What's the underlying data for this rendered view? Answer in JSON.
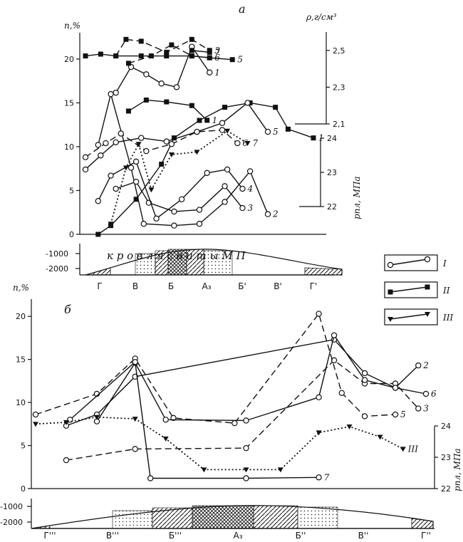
{
  "chart_data": [
    {
      "panel_label": "а",
      "type": "line",
      "y_left_label": "n,%",
      "y_left_ticks": [
        "0",
        "5",
        "10",
        "15",
        "20"
      ],
      "y_left_lim": [
        0,
        23
      ],
      "y_right_density_label": "ρ,г/см³",
      "y_right_density_ticks": [
        "2,1",
        "2,3",
        "2,5"
      ],
      "y_right_density_lim": [
        2.1,
        2.6
      ],
      "y_right_pressure_label": "pпл, МПа",
      "y_right_pressure_ticks": [
        "22",
        "23",
        "24"
      ],
      "y_right_pressure_lim": [
        22,
        24
      ],
      "x_zone_labels": [
        "Г",
        "В",
        "Б",
        "А₃",
        "Б'",
        "В'",
        "Г'"
      ],
      "profile_axis_ticks": [
        "-1000",
        "-2000"
      ],
      "profile_text": "к р о в л я    с в и т ы    М П",
      "series": [
        {
          "name": "1",
          "style": "solid",
          "marker": "square",
          "points": [
            [
              0.5,
              0
            ],
            [
              1.0,
              1
            ],
            [
              2.0,
              4
            ],
            [
              3.0,
              8
            ],
            [
              3.5,
              11
            ],
            [
              4.5,
              13
            ],
            [
              5.5,
              14.5
            ],
            [
              6.5,
              15
            ],
            [
              7.5,
              14.5
            ],
            [
              8.0,
              12
            ],
            [
              9.0,
              11
            ]
          ]
        },
        {
          "name": "2",
          "style": "solid",
          "marker": "circle",
          "points": [
            [
              0.5,
              10.2
            ],
            [
              1.0,
              16
            ],
            [
              1.8,
              7.6
            ],
            [
              2.3,
              1.2
            ],
            [
              3.5,
              1
            ],
            [
              4.5,
              1.2
            ],
            [
              5.5,
              3.7
            ],
            [
              6.5,
              7.2
            ],
            [
              7.2,
              2.3
            ]
          ]
        },
        {
          "name": "3",
          "style": "solid",
          "marker": "circle",
          "points": [
            [
              1.2,
              5.2
            ],
            [
              2.0,
              6
            ],
            [
              2.5,
              3.6
            ],
            [
              3.5,
              2.6
            ],
            [
              4.5,
              2.8
            ],
            [
              5.5,
              5.5
            ],
            [
              6.2,
              3
            ]
          ]
        },
        {
          "name": "4",
          "style": "solid",
          "marker": "circle",
          "points": [
            [
              0.5,
              3.8
            ],
            [
              1.0,
              6.7
            ],
            [
              2.0,
              8.3
            ],
            [
              2.8,
              1.8
            ],
            [
              3.8,
              4
            ],
            [
              4.8,
              7
            ],
            [
              5.6,
              7.4
            ],
            [
              6.2,
              5.2
            ]
          ]
        },
        {
          "name": "5",
          "style": "solid",
          "marker": "circle",
          "points": [
            [
              0,
              7.4
            ],
            [
              0.6,
              9
            ],
            [
              1.2,
              10.5
            ],
            [
              2.2,
              11
            ],
            [
              3.2,
              10.6
            ],
            [
              4.4,
              11.7
            ],
            [
              5.4,
              12.7
            ],
            [
              6.4,
              15
            ],
            [
              7.2,
              11.7
            ]
          ]
        },
        {
          "name": "6",
          "style": "dashed",
          "marker": "circle",
          "points": [
            [
              0,
              8.8
            ],
            [
              0.8,
              10.4
            ],
            [
              1.4,
              11.5
            ],
            [
              2.4,
              9.5
            ],
            [
              3.4,
              10.3
            ],
            [
              4.4,
              11.7
            ],
            [
              5.4,
              11.9
            ],
            [
              6.0,
              10.4
            ]
          ]
        },
        {
          "name": "7",
          "style": "dotted",
          "marker": "triangle",
          "points": [
            [
              1.0,
              1.2
            ],
            [
              1.6,
              7.6
            ],
            [
              2.1,
              10.3
            ],
            [
              2.6,
              5.1
            ],
            [
              3.4,
              9.1
            ],
            [
              4.4,
              9.4
            ],
            [
              5.6,
              11.8
            ],
            [
              6.4,
              10.4
            ]
          ]
        }
      ],
      "density_series": [
        {
          "name": "1",
          "style": "solid",
          "marker": "circle",
          "points": [
            [
              1.2,
              2.27
            ],
            [
              1.8,
              2.41
            ],
            [
              2.4,
              2.37
            ],
            [
              3.0,
              2.32
            ],
            [
              3.6,
              2.3
            ],
            [
              4.2,
              2.52
            ],
            [
              4.9,
              2.38
            ]
          ]
        },
        {
          "name": "3",
          "style": "dashed",
          "marker": "square",
          "points": [
            [
              1.2,
              2.47
            ],
            [
              1.6,
              2.56
            ],
            [
              2.2,
              2.55
            ],
            [
              3.2,
              2.49
            ],
            [
              4.2,
              2.56
            ],
            [
              4.9,
              2.5
            ]
          ]
        },
        {
          "name": "5",
          "style": "solid",
          "marker": "square",
          "points": [
            [
              0.0,
              2.47
            ],
            [
              0.6,
              2.48
            ],
            [
              1.2,
              2.47
            ],
            [
              2.2,
              2.47
            ],
            [
              3.2,
              2.47
            ],
            [
              4.2,
              2.47
            ],
            [
              4.9,
              2.46
            ],
            [
              5.8,
              2.45
            ]
          ]
        },
        {
          "name": "6",
          "style": "dashed",
          "marker": "square",
          "points": [
            [
              1.7,
              2.43
            ],
            [
              2.6,
              2.47
            ],
            [
              3.4,
              2.53
            ],
            [
              4.2,
              2.47
            ],
            [
              4.9,
              2.46
            ]
          ]
        },
        {
          "name": "7",
          "style": "solid",
          "marker": "square",
          "points": [
            [
              4.2,
              2.5
            ],
            [
              4.9,
              2.49
            ]
          ]
        },
        {
          "name": "1",
          "style": "solid",
          "marker": "square",
          "points": [
            [
              1.7,
              2.17
            ],
            [
              2.4,
              2.23
            ],
            [
              3.2,
              2.22
            ],
            [
              4.2,
              2.2
            ],
            [
              4.8,
              2.12
            ]
          ]
        }
      ]
    },
    {
      "panel_label": "б",
      "type": "line",
      "y_left_label": "n,%",
      "y_left_ticks": [
        "0",
        "5",
        "10",
        "15",
        "20"
      ],
      "y_left_lim": [
        0,
        22
      ],
      "y_right_pressure_label": "pпл, МПа",
      "y_right_pressure_ticks": [
        "22",
        "23",
        "24"
      ],
      "y_right_pressure_lim": [
        22,
        24
      ],
      "x_zone_labels": [
        "Г'''",
        "В'''",
        "Б'''",
        "А₃",
        "Б''",
        "В''",
        "Г''"
      ],
      "profile_axis_ticks": [
        "-1000",
        "-2000"
      ],
      "series": [
        {
          "name": "2",
          "style": "solid",
          "marker": "circle",
          "points": [
            [
              0.8,
              7.3
            ],
            [
              1.6,
              8.6
            ],
            [
              2.6,
              13
            ],
            [
              7.8,
              17.3
            ],
            [
              8.6,
              13.4
            ],
            [
              9.4,
              11.7
            ],
            [
              10.0,
              14.3
            ]
          ]
        },
        {
          "name": "3",
          "style": "dashed",
          "marker": "circle",
          "points": [
            [
              0.8,
              3.3
            ],
            [
              2.6,
              4.6
            ],
            [
              5.5,
              4.7
            ],
            [
              7.8,
              14.9
            ],
            [
              8.6,
              12.2
            ],
            [
              9.4,
              12.2
            ],
            [
              10.0,
              9.3
            ]
          ]
        },
        {
          "name": "5",
          "style": "dashed",
          "marker": "circle",
          "points": [
            [
              0,
              8.6
            ],
            [
              1.6,
              11
            ],
            [
              2.6,
              15.1
            ],
            [
              3.6,
              8.2
            ],
            [
              5.2,
              7.6
            ],
            [
              7.4,
              20.3
            ],
            [
              8.0,
              11.1
            ],
            [
              8.6,
              8.4
            ],
            [
              9.4,
              8.6
            ]
          ]
        },
        {
          "name": "6",
          "style": "solid",
          "marker": "circle",
          "points": [
            [
              1.6,
              7.8
            ],
            [
              2.6,
              14.6
            ],
            [
              3.4,
              8
            ],
            [
              5.5,
              7.9
            ],
            [
              7.4,
              10.6
            ],
            [
              7.8,
              17.8
            ],
            [
              8.6,
              12.6
            ],
            [
              9.4,
              11.7
            ],
            [
              10.2,
              11
            ]
          ]
        },
        {
          "name": "7",
          "style": "solid",
          "marker": "circle",
          "points": [
            [
              0.9,
              8
            ],
            [
              2.6,
              14.7
            ],
            [
              3.0,
              1.2
            ],
            [
              5.5,
              1.2
            ],
            [
              7.4,
              1.3
            ]
          ]
        },
        {
          "name": "III",
          "style": "dotted",
          "marker": "triangle",
          "points": [
            [
              0,
              7.5
            ],
            [
              0.8,
              7.7
            ],
            [
              1.6,
              8.3
            ],
            [
              2.6,
              8.1
            ],
            [
              3.4,
              5.8
            ],
            [
              4.4,
              2.2
            ],
            [
              5.5,
              2.2
            ],
            [
              6.4,
              2.2
            ],
            [
              7.4,
              6.5
            ],
            [
              8.2,
              7.2
            ],
            [
              9.0,
              6
            ],
            [
              9.6,
              4.6
            ]
          ]
        }
      ]
    }
  ],
  "legend": {
    "items": [
      {
        "label": "I",
        "marker": "circle"
      },
      {
        "label": "II",
        "marker": "square"
      },
      {
        "label": "III",
        "marker": "triangle"
      }
    ]
  }
}
